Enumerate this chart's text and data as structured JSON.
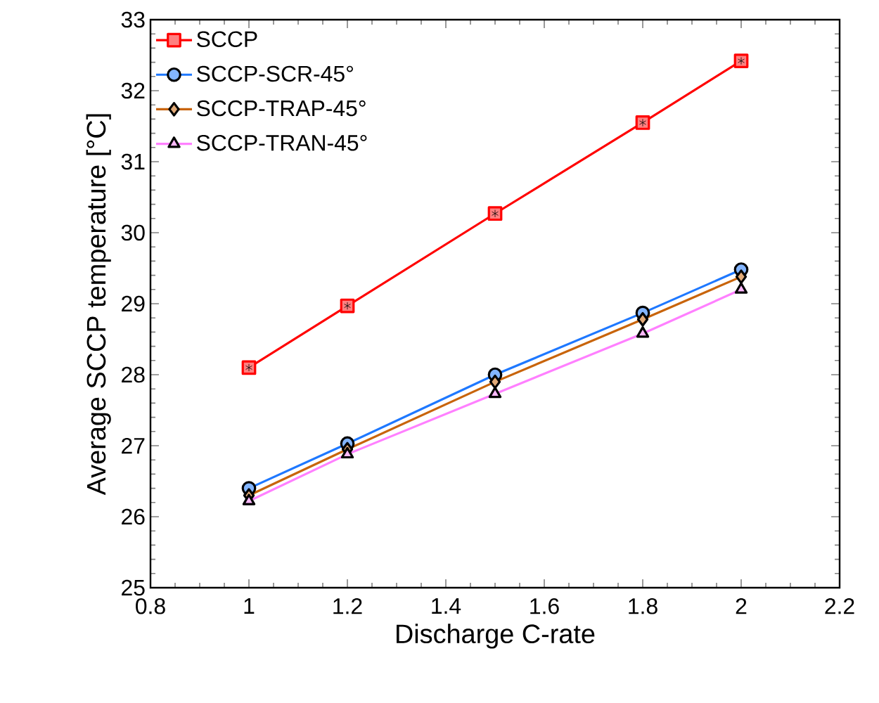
{
  "chart_data": {
    "type": "line",
    "xlabel": "Discharge C-rate",
    "ylabel": "Average SCCP temperature [°C]",
    "x": [
      1,
      1.2,
      1.5,
      1.8,
      2
    ],
    "xlim": [
      0.8,
      2.2
    ],
    "xticks": [
      0.8,
      1,
      1.2,
      1.4,
      1.6,
      1.8,
      2,
      2.2
    ],
    "ylim": [
      25,
      33
    ],
    "yticks": [
      25,
      26,
      27,
      28,
      29,
      30,
      31,
      32,
      33
    ],
    "grid": false,
    "legend": "top left",
    "line_style": "solid",
    "series": [
      {
        "name": "SCCP",
        "color": "#ff0000",
        "marker": "square",
        "values": [
          28.1,
          28.97,
          30.27,
          31.55,
          32.42
        ]
      },
      {
        "name": "SCCP-SCR-45°",
        "color": "#1e78ff",
        "marker": "circle",
        "values": [
          26.4,
          27.03,
          28.0,
          28.87,
          29.48
        ]
      },
      {
        "name": "SCCP-TRAP-45°",
        "color": "#c8640a",
        "marker": "diamond",
        "values": [
          26.3,
          26.95,
          27.9,
          28.78,
          29.38
        ]
      },
      {
        "name": "SCCP-TRAN-45°",
        "color": "#ff80ff",
        "marker": "triangle",
        "values": [
          26.22,
          26.88,
          27.73,
          28.58,
          29.2
        ]
      }
    ]
  }
}
